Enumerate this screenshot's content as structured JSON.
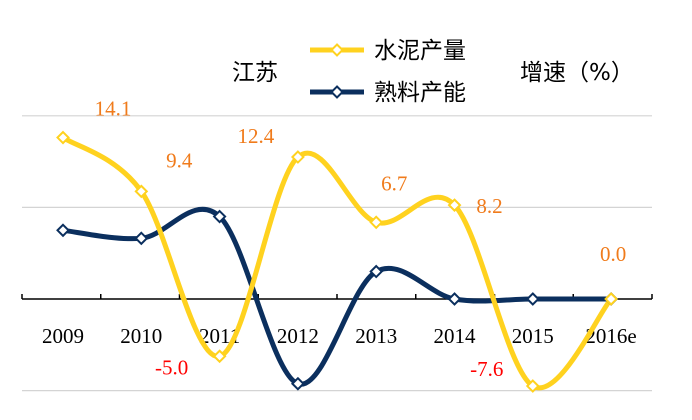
{
  "chart_data": {
    "type": "line",
    "region_label": "江苏",
    "unit_label": "增速（%）",
    "categories": [
      "2009",
      "2010",
      "2011",
      "2012",
      "2013",
      "2014",
      "2015",
      "2016e"
    ],
    "series": [
      {
        "name": "水泥产量",
        "color": "#ffd21f",
        "values": [
          14.1,
          9.4,
          -5.0,
          12.4,
          6.7,
          8.2,
          -7.6,
          0.0
        ],
        "data_labels": [
          "14.1",
          "9.4",
          "-5.0",
          "12.4",
          "6.7",
          "8.2",
          "-7.6",
          "0.0"
        ],
        "label_colors": [
          "#f07b1b",
          "#f07b1b",
          "#ff0000",
          "#f07b1b",
          "#f07b1b",
          "#f07b1b",
          "#ff0000",
          "#f07b1b"
        ]
      },
      {
        "name": "熟料产能",
        "color": "#0b2f5e",
        "values": [
          6.0,
          5.3,
          7.2,
          -7.4,
          2.4,
          0.0,
          0.0,
          0.0
        ]
      }
    ],
    "ylim": [
      -8,
      16
    ],
    "gridlines": [
      -8,
      8,
      16
    ],
    "grid": true,
    "legend_position": "top-center",
    "smooth": true
  }
}
